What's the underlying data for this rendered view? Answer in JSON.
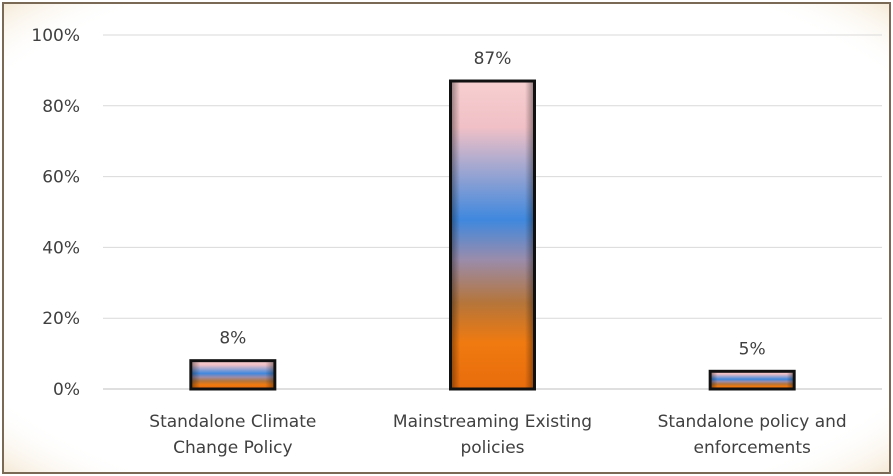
{
  "chart_data": {
    "type": "bar",
    "categories": [
      [
        "Standalone Climate",
        "Change Policy"
      ],
      [
        "Mainstreaming Existing",
        "policies"
      ],
      [
        "Standalone policy and",
        "enforcements"
      ]
    ],
    "values": [
      8,
      87,
      5
    ],
    "data_labels": [
      "8%",
      "87%",
      "5%"
    ],
    "ylim": [
      0,
      100
    ],
    "yticks": [
      0,
      20,
      40,
      60,
      80,
      100
    ],
    "ytick_labels": [
      "0%",
      "20%",
      "40%",
      "60%",
      "80%",
      "100%"
    ],
    "grid": true,
    "legend": "none",
    "colors": {
      "bar_top": "#f4c6c6",
      "bar_mid": "#3f88de",
      "bar_bottom": "#f07a10",
      "bar_border": "#111111",
      "frame": "#7a6a55",
      "frame_glow": "#f3e3cc",
      "grid": "#d9d9d9",
      "axis": "#bfbfbf",
      "text": "#404040"
    }
  }
}
